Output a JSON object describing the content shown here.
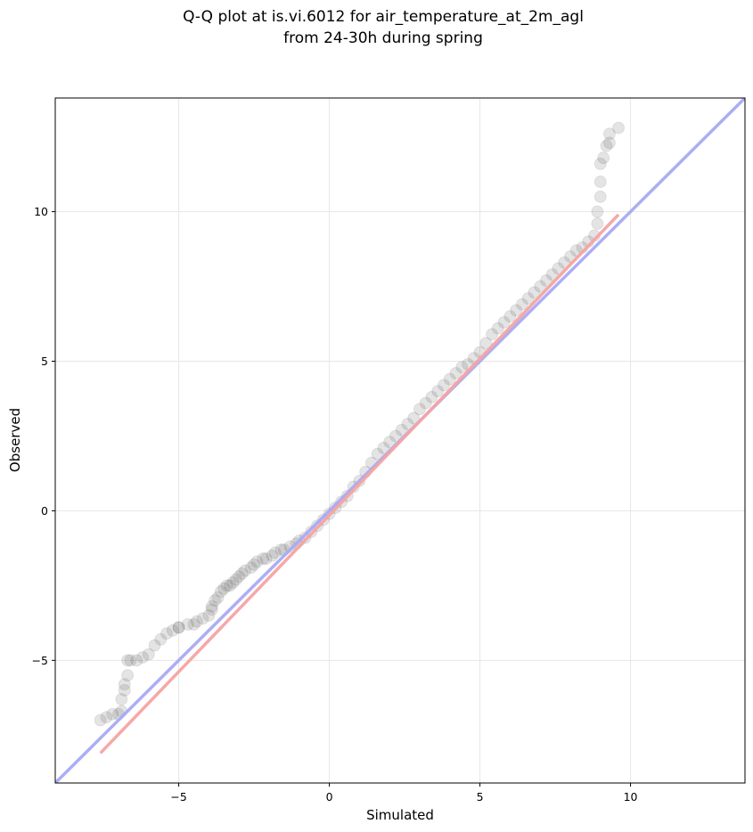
{
  "chart_data": {
    "type": "scatter",
    "title_line1": "Q-Q plot at is.vi.6012 for air_temperature_at_2m_agl",
    "title_line2": "from 24-30h during spring",
    "xlabel": "Simulated",
    "ylabel": "Observed",
    "xlim": [
      -9.1,
      13.8
    ],
    "ylim": [
      -9.1,
      13.8
    ],
    "grid": true,
    "x_ticks": [
      -5,
      0,
      5,
      10
    ],
    "y_ticks": [
      -5,
      0,
      5,
      10
    ],
    "x_tick_labels": [
      "−5",
      "0",
      "5",
      "10"
    ],
    "y_tick_labels": [
      "−5",
      "0",
      "5",
      "10"
    ],
    "point_color": "#555555",
    "identity_line_color": "#a8aaf3",
    "fit_line_color": "#f5a3a3",
    "identity_line": [
      [
        -9.1,
        -9.1
      ],
      [
        13.8,
        13.8
      ]
    ],
    "fit_line": [
      [
        -7.6,
        -8.1
      ],
      [
        9.6,
        9.9
      ]
    ],
    "series": [
      {
        "x": [
          -7.6,
          -7.4,
          -7.2,
          -7.0,
          -6.9,
          -6.9,
          -6.8,
          -6.8,
          -6.7,
          -6.7,
          -6.6,
          -6.4,
          -6.2,
          -6.0,
          -5.8,
          -5.6,
          -5.4,
          -5.2,
          -5.0,
          -5.0,
          -4.7,
          -4.5,
          -4.4,
          -4.2,
          -4.0,
          -3.9,
          -3.9,
          -3.8,
          -3.7,
          -3.6,
          -3.5,
          -3.4,
          -3.3,
          -3.2,
          -3.1,
          -3.0,
          -2.9,
          -2.8,
          -2.6,
          -2.5,
          -2.4,
          -2.2,
          -2.1,
          -1.9,
          -1.8,
          -1.6,
          -1.5,
          -1.3,
          -1.1,
          -1.0,
          -0.8,
          -0.6,
          -0.4,
          -0.2,
          0.0,
          0.2,
          0.4,
          0.6,
          0.8,
          1.0,
          1.2,
          1.4,
          1.6,
          1.8,
          2.0,
          2.2,
          2.4,
          2.6,
          2.8,
          3.0,
          3.2,
          3.4,
          3.6,
          3.8,
          4.0,
          4.2,
          4.4,
          4.6,
          4.8,
          5.0,
          5.2,
          5.4,
          5.6,
          5.8,
          6.0,
          6.2,
          6.4,
          6.6,
          6.8,
          7.0,
          7.2,
          7.4,
          7.6,
          7.8,
          8.0,
          8.2,
          8.4,
          8.6,
          8.8,
          8.9,
          8.9,
          9.0,
          9.0,
          9.0,
          9.1,
          9.2,
          9.3,
          9.3,
          9.6
        ],
        "y": [
          -7.0,
          -6.9,
          -6.8,
          -6.8,
          -6.7,
          -6.3,
          -6.0,
          -5.8,
          -5.5,
          -5.0,
          -5.0,
          -5.0,
          -4.9,
          -4.8,
          -4.5,
          -4.3,
          -4.1,
          -4.0,
          -3.9,
          -3.9,
          -3.8,
          -3.8,
          -3.7,
          -3.6,
          -3.5,
          -3.3,
          -3.2,
          -3.0,
          -2.9,
          -2.7,
          -2.6,
          -2.5,
          -2.5,
          -2.4,
          -2.3,
          -2.2,
          -2.1,
          -2.0,
          -1.9,
          -1.8,
          -1.7,
          -1.6,
          -1.6,
          -1.5,
          -1.4,
          -1.3,
          -1.3,
          -1.2,
          -1.1,
          -1.0,
          -0.9,
          -0.7,
          -0.5,
          -0.3,
          -0.1,
          0.1,
          0.3,
          0.5,
          0.8,
          1.0,
          1.3,
          1.6,
          1.9,
          2.1,
          2.3,
          2.5,
          2.7,
          2.9,
          3.1,
          3.4,
          3.6,
          3.8,
          4.0,
          4.2,
          4.4,
          4.6,
          4.8,
          4.9,
          5.1,
          5.3,
          5.6,
          5.9,
          6.1,
          6.3,
          6.5,
          6.7,
          6.9,
          7.1,
          7.3,
          7.5,
          7.7,
          7.9,
          8.1,
          8.3,
          8.5,
          8.7,
          8.8,
          9.0,
          9.2,
          9.6,
          10.0,
          10.5,
          11.0,
          11.6,
          11.8,
          12.2,
          12.3,
          12.6,
          12.8
        ]
      }
    ]
  }
}
